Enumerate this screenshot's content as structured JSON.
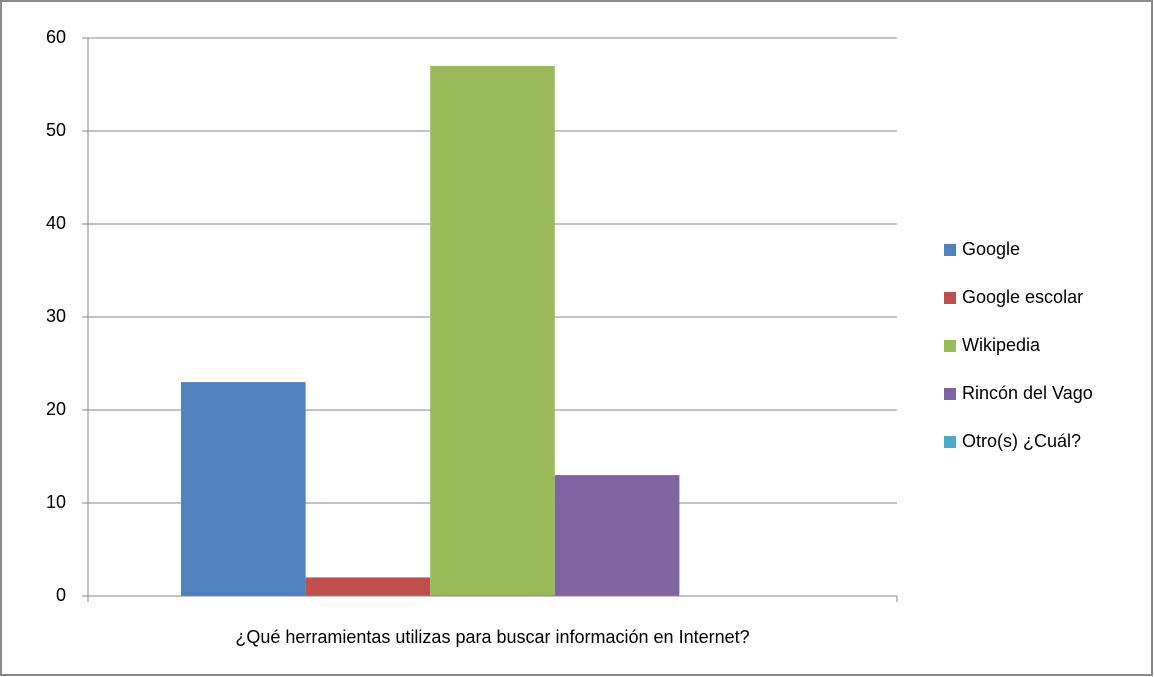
{
  "chart_data": {
    "type": "bar",
    "categories": [
      "¿Qué herramientas utilizas para buscar información en Internet?"
    ],
    "series": [
      {
        "name": "Google",
        "color": "#4f81bd",
        "values": [
          23
        ]
      },
      {
        "name": "Google escolar",
        "color": "#c0504d",
        "values": [
          2
        ]
      },
      {
        "name": "Wikipedia",
        "color": "#9bbb59",
        "values": [
          57
        ]
      },
      {
        "name": "Rincón del Vago",
        "color": "#8064a2",
        "values": [
          13
        ]
      },
      {
        "name": "Otro(s) ¿Cuál?",
        "color": "#4bacc6",
        "values": [
          0
        ]
      }
    ],
    "ylim": [
      0,
      60
    ],
    "yticks": [
      0,
      10,
      20,
      30,
      40,
      50,
      60
    ],
    "grid": true,
    "legend": "right"
  }
}
